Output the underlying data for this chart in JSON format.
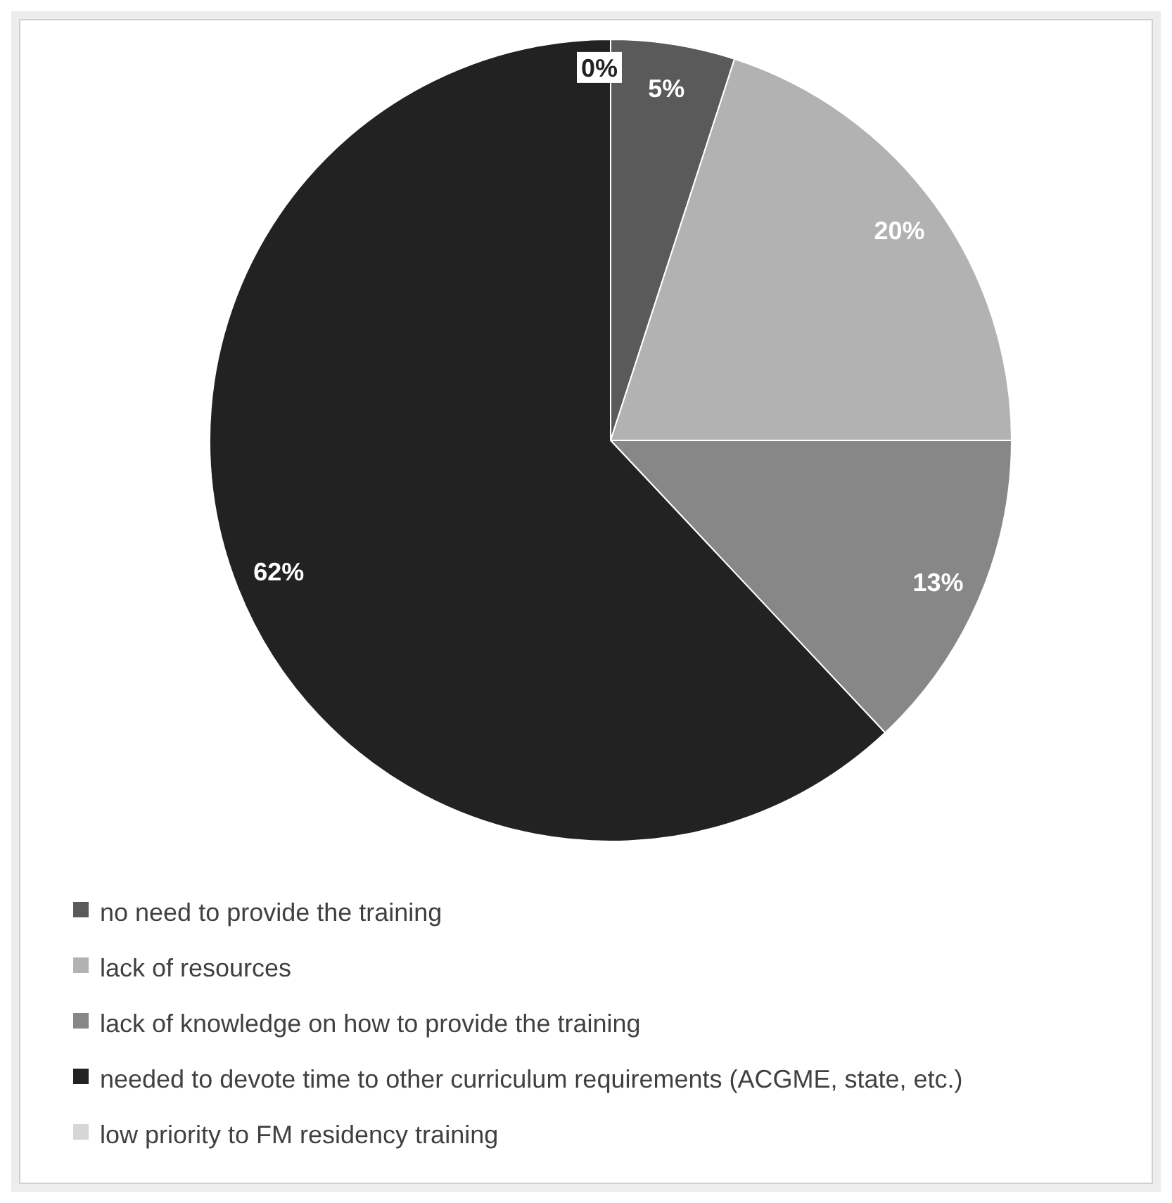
{
  "chart_data": {
    "type": "pie",
    "categories": [
      "no need to provide the training",
      "lack of resources",
      "lack of knowledge on how to provide the training",
      "needed to devote time to other curriculum requirements (ACGME, state, etc.)",
      "low priority to FM residency training"
    ],
    "values": [
      5,
      20,
      13,
      62,
      0
    ],
    "colors": [
      "#5a5a5a",
      "#b2b2b2",
      "#878787",
      "#222222",
      "#d6d6d6"
    ],
    "value_labels": [
      "5%",
      "20%",
      "13%",
      "62%",
      "0%"
    ],
    "legend": "bottom"
  }
}
